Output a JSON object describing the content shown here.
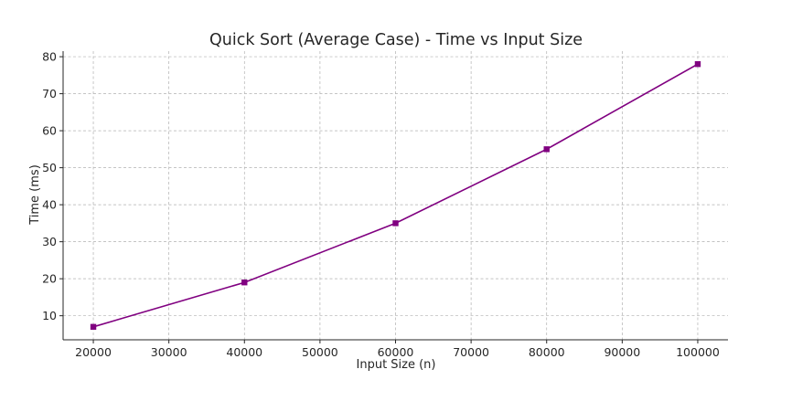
{
  "chart_data": {
    "type": "line",
    "title": "Quick Sort (Average Case) - Time vs Input Size",
    "xlabel": "Input Size (n)",
    "ylabel": "Time (ms)",
    "x": [
      20000,
      40000,
      60000,
      80000,
      100000
    ],
    "series": [
      {
        "values": [
          7,
          19,
          35,
          55,
          78
        ],
        "color": "#800080",
        "marker": "square"
      }
    ],
    "xlim": [
      16000,
      104000
    ],
    "ylim": [
      3.5,
      81.5
    ],
    "xticks": [
      20000,
      30000,
      40000,
      50000,
      60000,
      70000,
      80000,
      90000,
      100000
    ],
    "yticks": [
      10,
      20,
      30,
      40,
      50,
      60,
      70,
      80
    ],
    "grid": true
  }
}
